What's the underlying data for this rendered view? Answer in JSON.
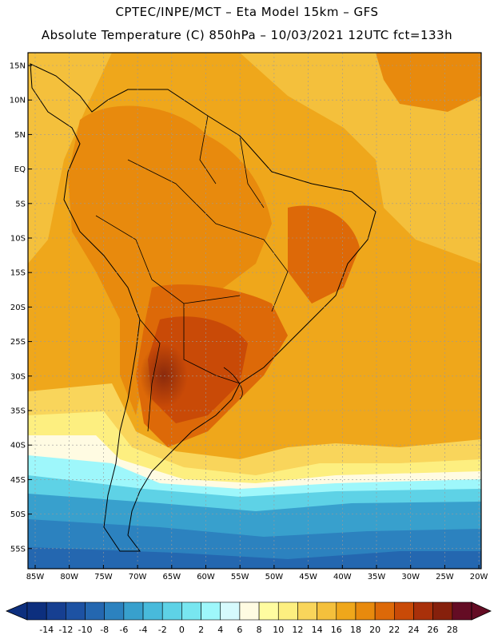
{
  "title_line1": "CPTEC/INPE/MCT –  Eta Model 15km – GFS",
  "title_line2": "Absolute Temperature (C) 850hPa – 10/03/2021 12UTC fct=133h",
  "lat_labels": [
    "15N",
    "10N",
    "5N",
    "EQ",
    "5S",
    "10S",
    "15S",
    "20S",
    "25S",
    "30S",
    "35S",
    "40S",
    "45S",
    "50S",
    "55S"
  ],
  "lon_labels": [
    "85W",
    "80W",
    "75W",
    "70W",
    "65W",
    "60W",
    "55W",
    "50W",
    "45W",
    "40W",
    "35W",
    "30W",
    "25W",
    "20W"
  ],
  "colorbar": {
    "labels": [
      "-14",
      "-12",
      "-10",
      "-8",
      "-6",
      "-4",
      "-2",
      "0",
      "2",
      "4",
      "6",
      "8",
      "10",
      "12",
      "14",
      "16",
      "18",
      "20",
      "22",
      "24",
      "26",
      "28"
    ],
    "colors": [
      "#0d2f7e",
      "#163f91",
      "#1d52a3",
      "#2467b0",
      "#2c82bf",
      "#38a0cd",
      "#48badb",
      "#5ed2e6",
      "#78e6f0",
      "#9ef7fb",
      "#d6fafd",
      "#fffbe2",
      "#fffca0",
      "#fdef80",
      "#f9d55b",
      "#f4c03c",
      "#efa71b",
      "#e88a0d",
      "#dd6908",
      "#c94a07",
      "#a9300a",
      "#86200c",
      "#640c24"
    ]
  },
  "map_icons": [
    "coastline-icon",
    "border-icon"
  ]
}
